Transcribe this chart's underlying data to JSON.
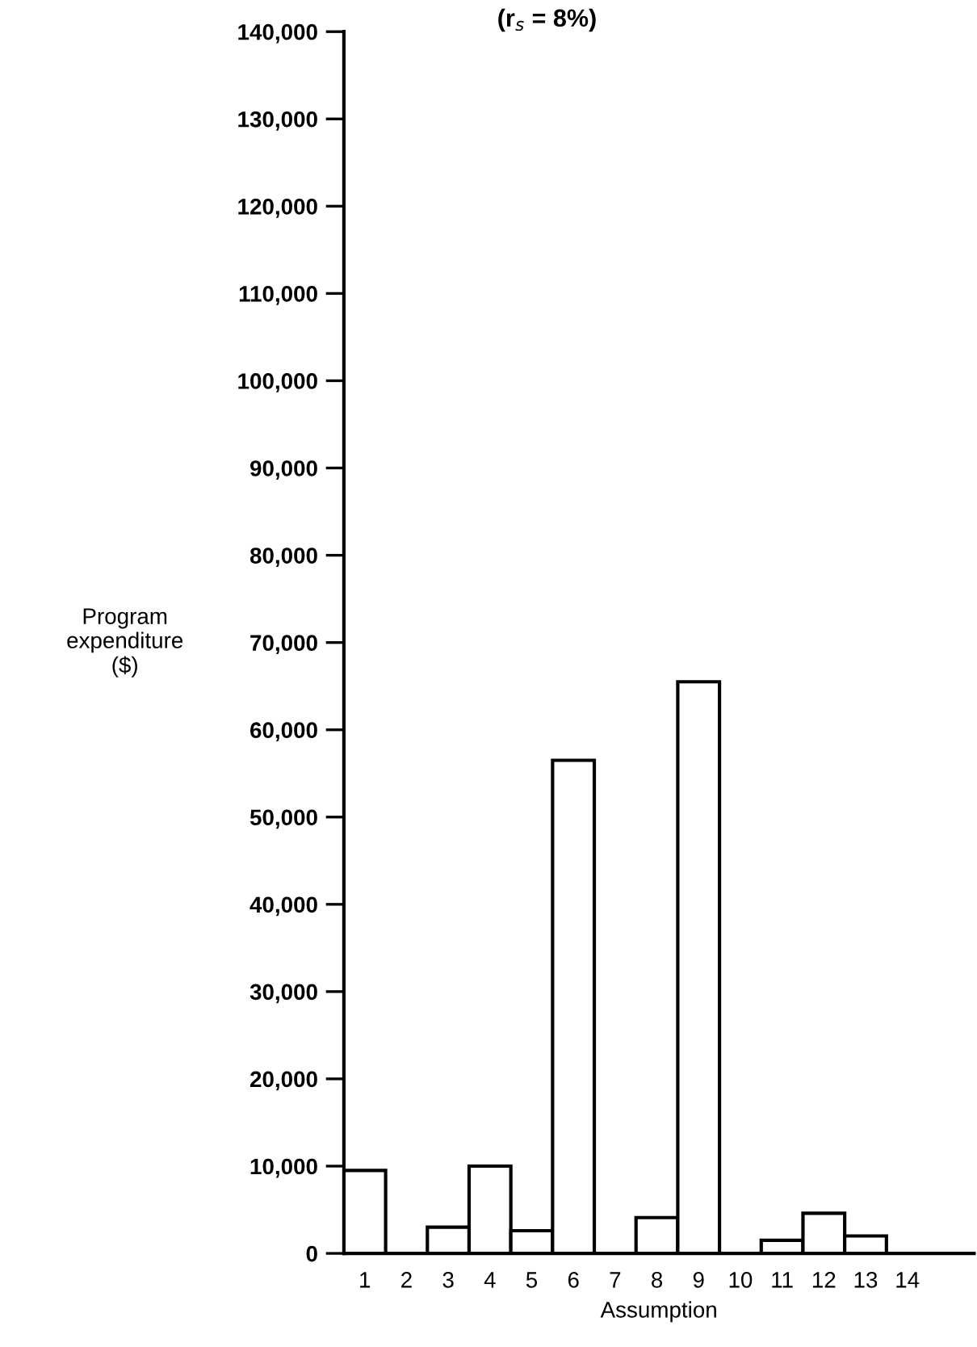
{
  "chart_data": {
    "type": "bar",
    "title": "(r$_{s}$ = 8%)",
    "xlabel": "Assumption",
    "ylabel": "Program\nexpenditure\n($)",
    "categories": [
      "1",
      "2",
      "3",
      "4",
      "5",
      "6",
      "7",
      "8",
      "9",
      "10",
      "11",
      "12",
      "13",
      "14"
    ],
    "values": [
      9500,
      0,
      3000,
      10000,
      2600,
      56500,
      0,
      4100,
      65500,
      0,
      1500,
      4600,
      2000,
      0
    ],
    "color": "#ffffff",
    "ylim": [
      0,
      140000
    ],
    "yticks": [
      {
        "value": 0,
        "label": "0"
      },
      {
        "value": 10000,
        "label": "10,000"
      },
      {
        "value": 20000,
        "label": "20,000"
      },
      {
        "value": 30000,
        "label": "30,000"
      },
      {
        "value": 40000,
        "label": "40,000"
      },
      {
        "value": 50000,
        "label": "50,000"
      },
      {
        "value": 60000,
        "label": "60,000"
      },
      {
        "value": 70000,
        "label": "70,000"
      },
      {
        "value": 80000,
        "label": "80,000"
      },
      {
        "value": 90000,
        "label": "90,000"
      },
      {
        "value": 100000,
        "label": "100,000"
      },
      {
        "value": 110000,
        "label": "110,000"
      },
      {
        "value": 120000,
        "label": "120,000"
      },
      {
        "value": 130000,
        "label": "130,000"
      },
      {
        "value": 140000,
        "label": "140,000"
      }
    ],
    "grid": false
  }
}
